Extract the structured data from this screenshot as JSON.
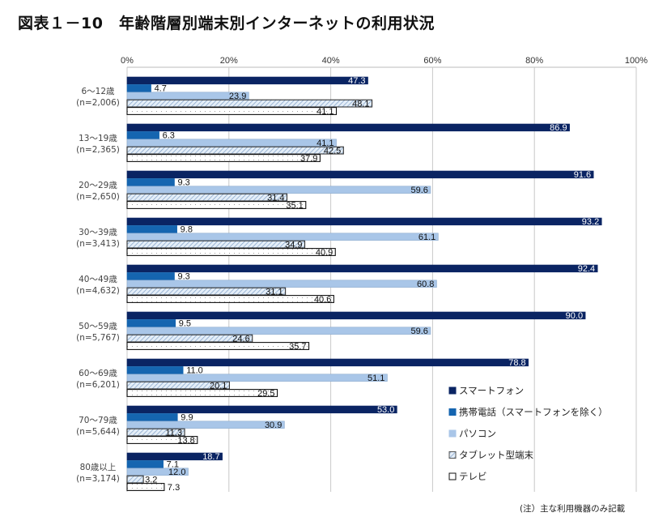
{
  "title": "図表１－10　年齢階層別端末別インターネットの利用状況",
  "note": "(注）主な利用機器のみ記載",
  "chart_data": {
    "type": "bar",
    "orientation": "horizontal",
    "title": "図表１－10　年齢階層別端末別インターネットの利用状況",
    "xlabel": "",
    "ylabel": "",
    "xlim": [
      0,
      100
    ],
    "x_ticks": [
      "0%",
      "20%",
      "40%",
      "60%",
      "80%",
      "100%"
    ],
    "grid": true,
    "legend_position": "bottom-right",
    "categories": [
      {
        "age": "6～12歳",
        "n": "(n=2,006)"
      },
      {
        "age": "13～19歳",
        "n": "(n=2,365)"
      },
      {
        "age": "20～29歳",
        "n": "(n=2,650)"
      },
      {
        "age": "30～39歳",
        "n": "(n=3,413)"
      },
      {
        "age": "40～49歳",
        "n": "(n=4,632)"
      },
      {
        "age": "50～59歳",
        "n": "(n=5,767)"
      },
      {
        "age": "60～69歳",
        "n": "(n=6,201)"
      },
      {
        "age": "70～79歳",
        "n": "(n=5,644)"
      },
      {
        "age": "80歳以上",
        "n": "(n=3,174)"
      }
    ],
    "series": [
      {
        "name": "スマートフォン",
        "color": "#0a2463",
        "pattern": "solid",
        "values": [
          47.3,
          86.9,
          91.6,
          93.2,
          92.4,
          90.0,
          78.8,
          53.0,
          18.7
        ]
      },
      {
        "name": "携帯電話（スマートフォンを除く）",
        "color": "#1565b0",
        "pattern": "solid",
        "values": [
          4.7,
          6.3,
          9.3,
          9.8,
          9.3,
          9.5,
          11.0,
          9.9,
          7.1
        ]
      },
      {
        "name": "パソコン",
        "color": "#a9c6e8",
        "pattern": "solid",
        "values": [
          23.9,
          41.1,
          59.6,
          61.1,
          60.8,
          59.6,
          51.1,
          30.9,
          12.0
        ]
      },
      {
        "name": "タブレット型端末",
        "color": "#8fb0d6",
        "pattern": "hatch",
        "values": [
          48.1,
          42.5,
          31.4,
          34.9,
          31.1,
          24.6,
          20.1,
          11.3,
          3.2
        ]
      },
      {
        "name": "テレビ",
        "color": "#ffffff",
        "pattern": "dots",
        "values": [
          41.1,
          37.9,
          35.1,
          40.9,
          40.6,
          35.7,
          29.5,
          13.8,
          7.3
        ]
      }
    ]
  }
}
